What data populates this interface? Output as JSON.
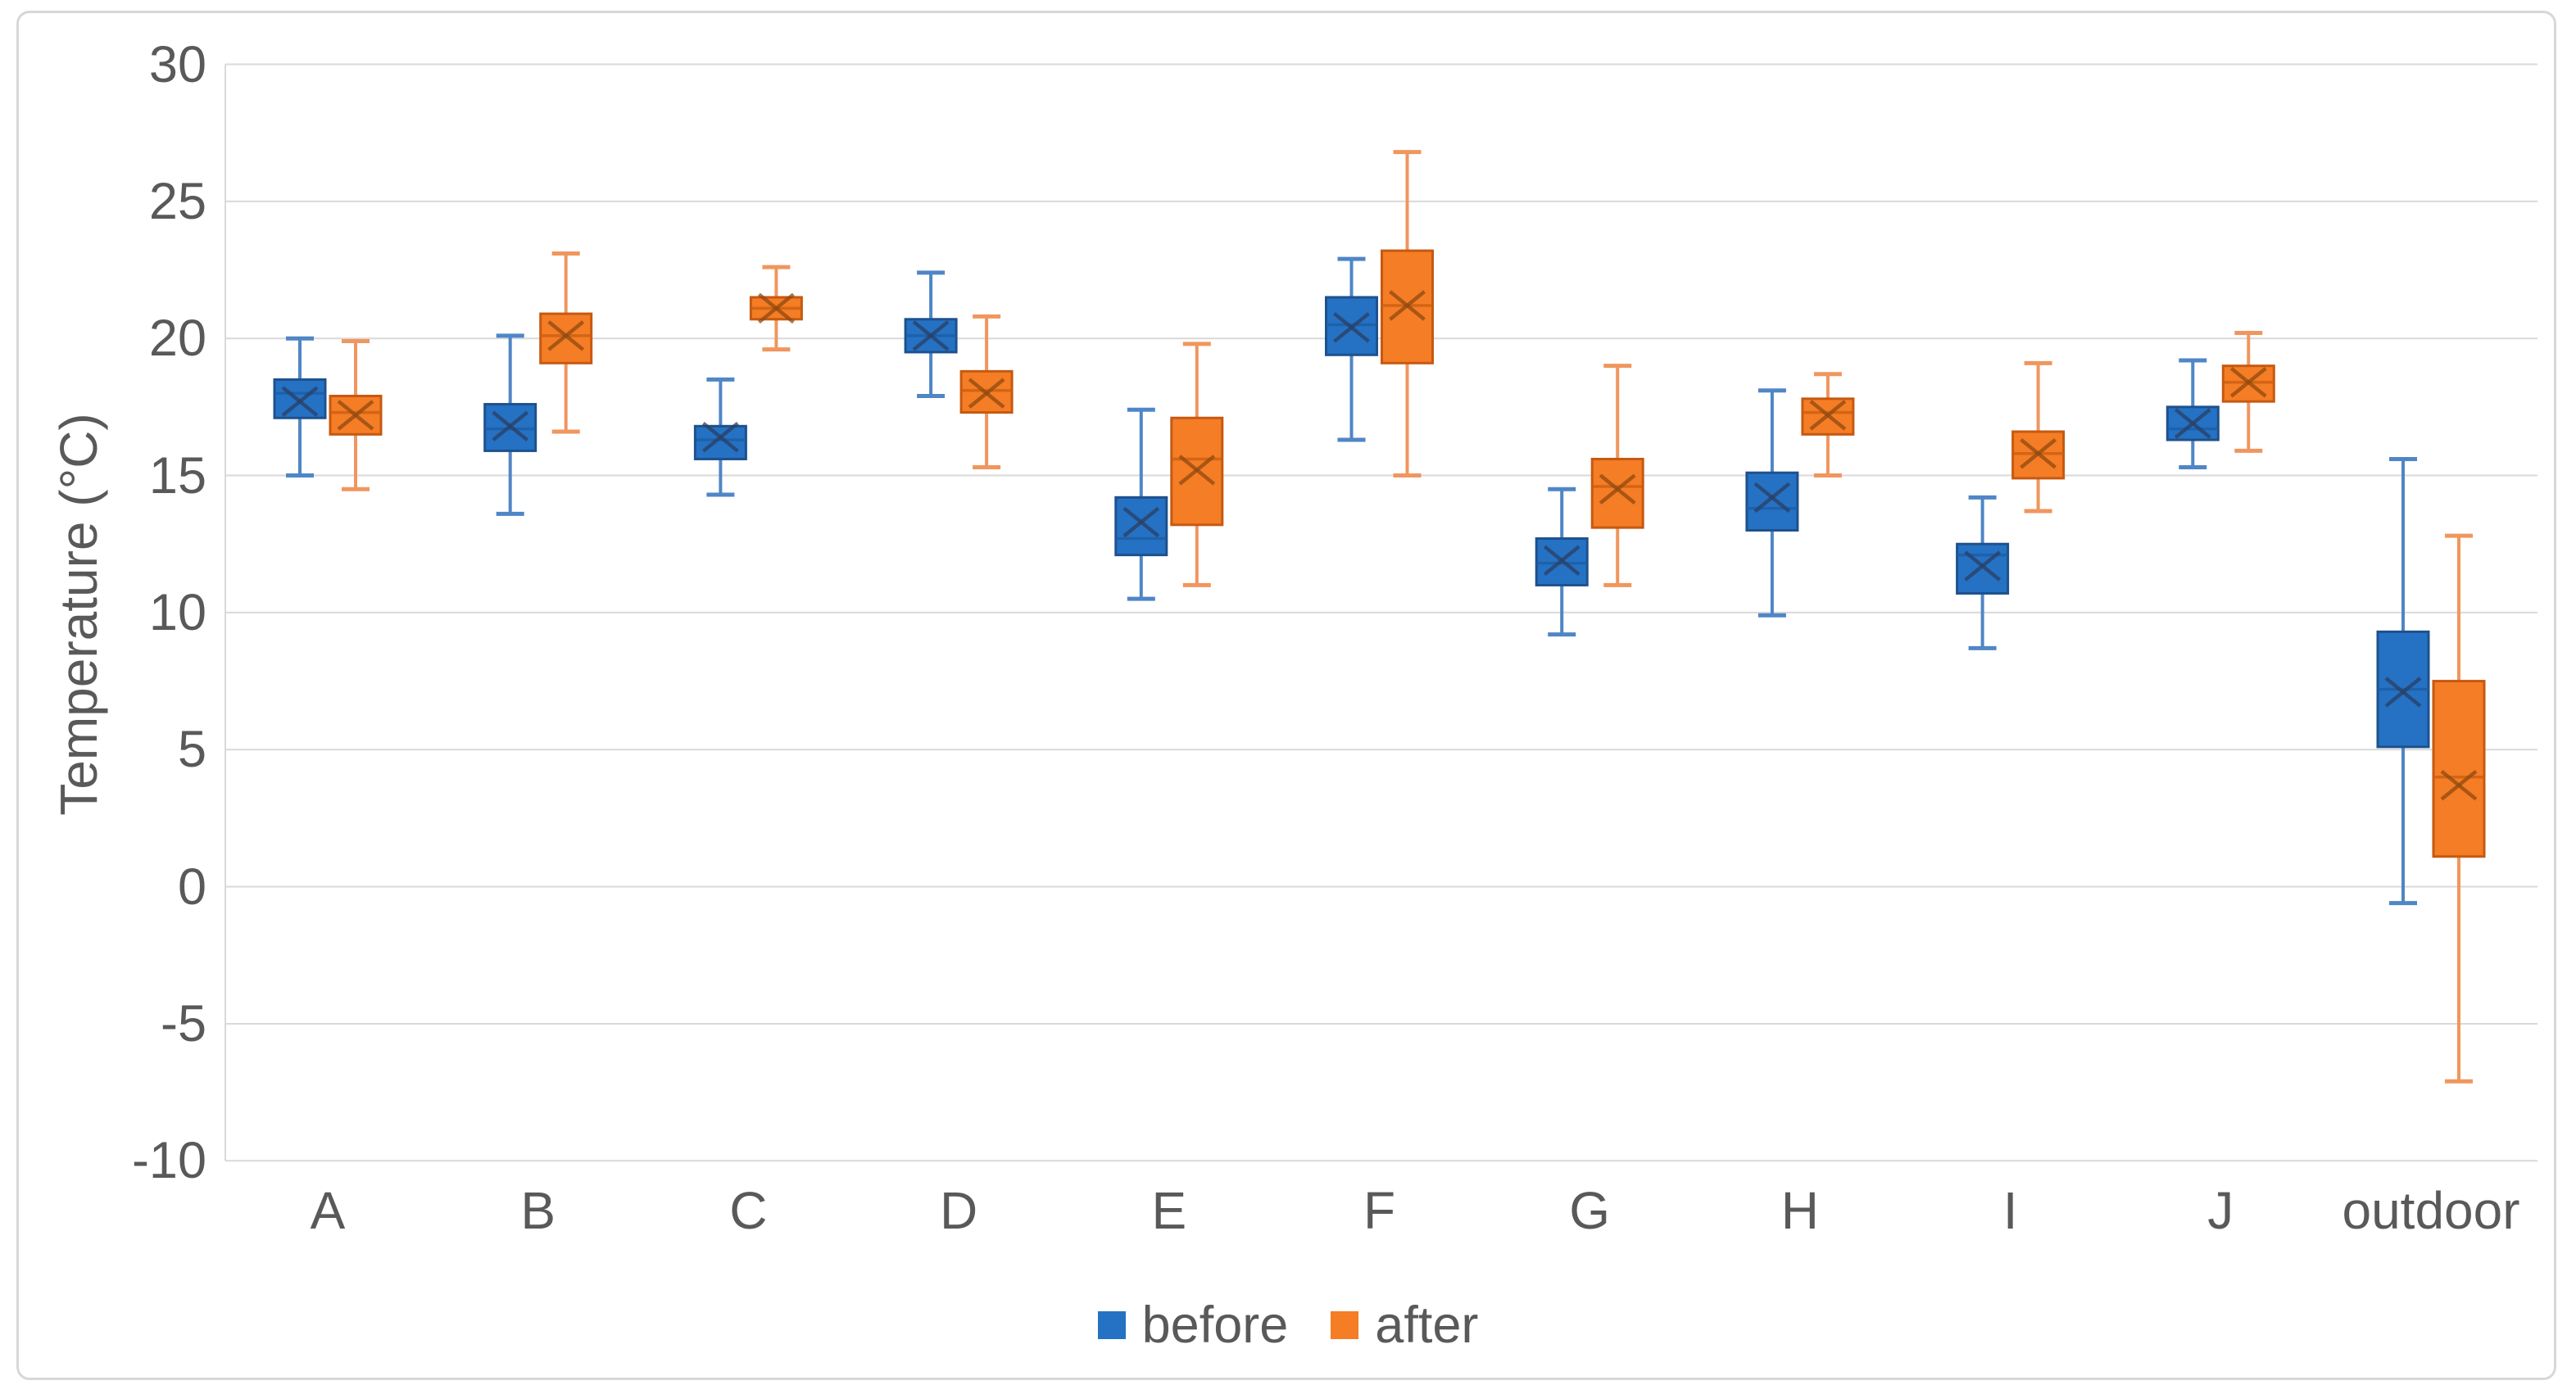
{
  "chart_data": {
    "type": "boxplot",
    "title": "",
    "xlabel": "",
    "ylabel": "Temperature (°C)",
    "ylim": [
      -10,
      30
    ],
    "yticks": [
      30,
      25,
      20,
      15,
      10,
      5,
      0,
      -5,
      -10
    ],
    "grid": "horizontal",
    "legend_position": "bottom",
    "categories": [
      "A",
      "B",
      "C",
      "D",
      "E",
      "F",
      "G",
      "H",
      "I",
      "J",
      "outdoor"
    ],
    "series": [
      {
        "name": "before",
        "color": "#2572c4",
        "border_color": "#1e518d",
        "whisker_color": "#4f86c6",
        "median_color": "#1d5ca4",
        "mean_color": "#2b3f63",
        "boxes": [
          {
            "low": 15.0,
            "q1": 17.1,
            "median": 18.0,
            "mean": 17.7,
            "q3": 18.5,
            "high": 20.0
          },
          {
            "low": 13.6,
            "q1": 15.9,
            "median": 16.7,
            "mean": 16.8,
            "q3": 17.6,
            "high": 20.1
          },
          {
            "low": 14.3,
            "q1": 15.6,
            "median": 16.3,
            "mean": 16.4,
            "q3": 16.8,
            "high": 18.5
          },
          {
            "low": 17.9,
            "q1": 19.5,
            "median": 20.1,
            "mean": 20.1,
            "q3": 20.7,
            "high": 22.4
          },
          {
            "low": 10.5,
            "q1": 12.1,
            "median": 12.7,
            "mean": 13.3,
            "q3": 14.2,
            "high": 17.4
          },
          {
            "low": 16.3,
            "q1": 19.4,
            "median": 20.5,
            "mean": 20.4,
            "q3": 21.5,
            "high": 22.9
          },
          {
            "low": 9.2,
            "q1": 11.0,
            "median": 11.8,
            "mean": 11.9,
            "q3": 12.7,
            "high": 14.5
          },
          {
            "low": 9.9,
            "q1": 13.0,
            "median": 13.8,
            "mean": 14.2,
            "q3": 15.1,
            "high": 18.1
          },
          {
            "low": 8.7,
            "q1": 10.7,
            "median": 12.1,
            "mean": 11.7,
            "q3": 12.5,
            "high": 14.2
          },
          {
            "low": 15.3,
            "q1": 16.3,
            "median": 16.7,
            "mean": 16.9,
            "q3": 17.5,
            "high": 19.2
          },
          {
            "low": -0.6,
            "q1": 5.1,
            "median": 7.2,
            "mean": 7.1,
            "q3": 9.3,
            "high": 15.6
          }
        ]
      },
      {
        "name": "after",
        "color": "#f57d25",
        "border_color": "#c65911",
        "whisker_color": "#f0965e",
        "median_color": "#cb5f10",
        "mean_color": "#8f4a10",
        "boxes": [
          {
            "low": 14.5,
            "q1": 16.5,
            "median": 17.3,
            "mean": 17.2,
            "q3": 17.9,
            "high": 19.9
          },
          {
            "low": 16.6,
            "q1": 19.1,
            "median": 20.1,
            "mean": 20.1,
            "q3": 20.9,
            "high": 23.1
          },
          {
            "low": 19.6,
            "q1": 20.7,
            "median": 21.1,
            "mean": 21.1,
            "q3": 21.5,
            "high": 22.6
          },
          {
            "low": 15.3,
            "q1": 17.3,
            "median": 18.1,
            "mean": 18.0,
            "q3": 18.8,
            "high": 20.8
          },
          {
            "low": 11.0,
            "q1": 13.2,
            "median": 15.6,
            "mean": 15.2,
            "q3": 17.1,
            "high": 19.8
          },
          {
            "low": 15.0,
            "q1": 19.1,
            "median": 21.2,
            "mean": 21.2,
            "q3": 23.2,
            "high": 26.8
          },
          {
            "low": 11.0,
            "q1": 13.1,
            "median": 14.6,
            "mean": 14.5,
            "q3": 15.6,
            "high": 19.0
          },
          {
            "low": 15.0,
            "q1": 16.5,
            "median": 17.3,
            "mean": 17.2,
            "q3": 17.8,
            "high": 18.7
          },
          {
            "low": 13.7,
            "q1": 14.9,
            "median": 15.8,
            "mean": 15.8,
            "q3": 16.6,
            "high": 19.1
          },
          {
            "low": 15.9,
            "q1": 17.7,
            "median": 18.4,
            "mean": 18.4,
            "q3": 19.0,
            "high": 20.2
          },
          {
            "low": -7.1,
            "q1": 1.1,
            "median": 4.0,
            "mean": 3.7,
            "q3": 7.5,
            "high": 12.8
          }
        ]
      }
    ],
    "gridline_color": "#d9d9d9",
    "text_color": "#595959"
  }
}
